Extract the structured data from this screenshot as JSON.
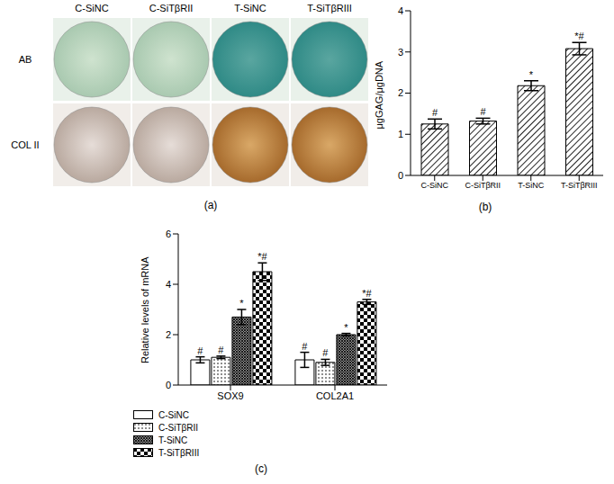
{
  "panel_a": {
    "title": "(a)",
    "columns": [
      "C-SiNC",
      "C-SiTβRII",
      "T-SiNC",
      "T-SiTβRIII"
    ],
    "rows": [
      "AB",
      "COL II"
    ]
  },
  "chart_data": [
    {
      "type": "bar",
      "title": "(b)",
      "categories": [
        "C-SiNC",
        "C-SiTβRII",
        "T-SiNC",
        "T-SiTβRIII"
      ],
      "values": [
        1.25,
        1.32,
        2.18,
        3.08
      ],
      "errors": [
        0.12,
        0.07,
        0.12,
        0.15
      ],
      "annotations": [
        "#",
        "#",
        "*",
        "*#"
      ],
      "color": "#222222",
      "ylabel": "μgGAG/μgDNA",
      "ylim": [
        0,
        4
      ],
      "yticks": [
        0,
        1,
        2,
        3,
        4
      ],
      "grid": false
    },
    {
      "type": "bar",
      "title": "(c)",
      "categories": [
        "SOX9",
        "COL2A1"
      ],
      "series": [
        {
          "name": "C-SiNC",
          "color": "#000000",
          "values": [
            1.0,
            1.0
          ],
          "errors": [
            0.12,
            0.3
          ],
          "annotations": [
            "#",
            "#"
          ]
        },
        {
          "name": "C-SiTβRII",
          "color": "#000000",
          "values": [
            1.1,
            0.9
          ],
          "errors": [
            0.05,
            0.12
          ],
          "annotations": [
            "#",
            "#"
          ]
        },
        {
          "name": "T-SiNC",
          "color": "#000000",
          "values": [
            2.7,
            2.0
          ],
          "errors": [
            0.3,
            0.05
          ],
          "annotations": [
            "*",
            "*"
          ]
        },
        {
          "name": "T-SiTβRIII",
          "color": "#000000",
          "values": [
            4.5,
            3.3
          ],
          "errors": [
            0.35,
            0.1
          ],
          "annotations": [
            "*#",
            "*#"
          ]
        }
      ],
      "ylabel": "Relative levels of mRNA",
      "ylim": [
        0,
        6
      ],
      "yticks": [
        0,
        2,
        4,
        6
      ],
      "grid": false,
      "legend": "bottom"
    }
  ]
}
